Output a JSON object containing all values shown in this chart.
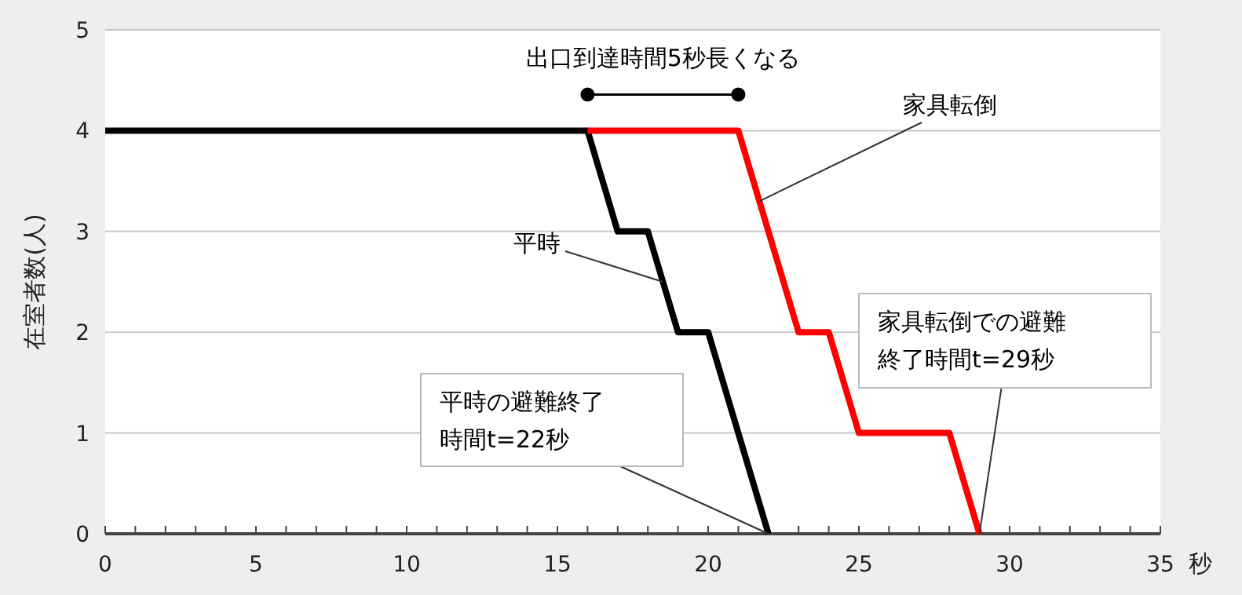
{
  "chart_data": {
    "type": "line",
    "xlabel": "秒",
    "ylabel": "在室者数(人)",
    "xlim": [
      0,
      35
    ],
    "ylim": [
      0,
      5
    ],
    "xticks": [
      0,
      {
        "value": 1,
        "label": null
      },
      {
        "value": 2,
        "label": null
      },
      {
        "value": 3,
        "label": null
      },
      {
        "value": 4,
        "label": null
      },
      5,
      {
        "value": 6,
        "label": null
      },
      {
        "value": 7,
        "label": null
      },
      {
        "value": 8,
        "label": null
      },
      {
        "value": 9,
        "label": null
      },
      10,
      {
        "value": 11,
        "label": null
      },
      {
        "value": 12,
        "label": null
      },
      {
        "value": 13,
        "label": null
      },
      {
        "value": 14,
        "label": null
      },
      15,
      {
        "value": 16,
        "label": null
      },
      {
        "value": 17,
        "label": null
      },
      {
        "value": 18,
        "label": null
      },
      {
        "value": 19,
        "label": null
      },
      20,
      {
        "value": 21,
        "label": null
      },
      {
        "value": 22,
        "label": null
      },
      {
        "value": 23,
        "label": null
      },
      {
        "value": 24,
        "label": null
      },
      25,
      {
        "value": 26,
        "label": null
      },
      {
        "value": 27,
        "label": null
      },
      {
        "value": 28,
        "label": null
      },
      {
        "value": 29,
        "label": null
      },
      30,
      {
        "value": 31,
        "label": null
      },
      {
        "value": 32,
        "label": null
      },
      {
        "value": 33,
        "label": null
      },
      {
        "value": 34,
        "label": null
      },
      35
    ],
    "yticks": [
      0,
      1,
      2,
      3,
      4,
      5
    ],
    "grid": "y",
    "legend": false,
    "marker": "none",
    "line_style": "solid",
    "series": [
      {
        "name": "平時",
        "color": "#000000",
        "x": [
          0,
          16,
          17,
          18,
          19,
          20,
          22
        ],
        "values": [
          4,
          4,
          3,
          3,
          2,
          2,
          0
        ]
      },
      {
        "name": "家具転倒",
        "color": "#ff0000",
        "x": [
          16,
          21,
          23,
          24,
          25,
          28,
          29
        ],
        "values": [
          4,
          4,
          2,
          2,
          1,
          1,
          0
        ]
      }
    ],
    "annotations": [
      "出口到達時間5秒長くなる",
      {
        "text": "平時の避難終了時間t=22秒",
        "x": 22,
        "y": 0
      },
      {
        "text": "家具転倒での避難終了時間t=29秒",
        "x": 29,
        "y": 0
      }
    ]
  }
}
